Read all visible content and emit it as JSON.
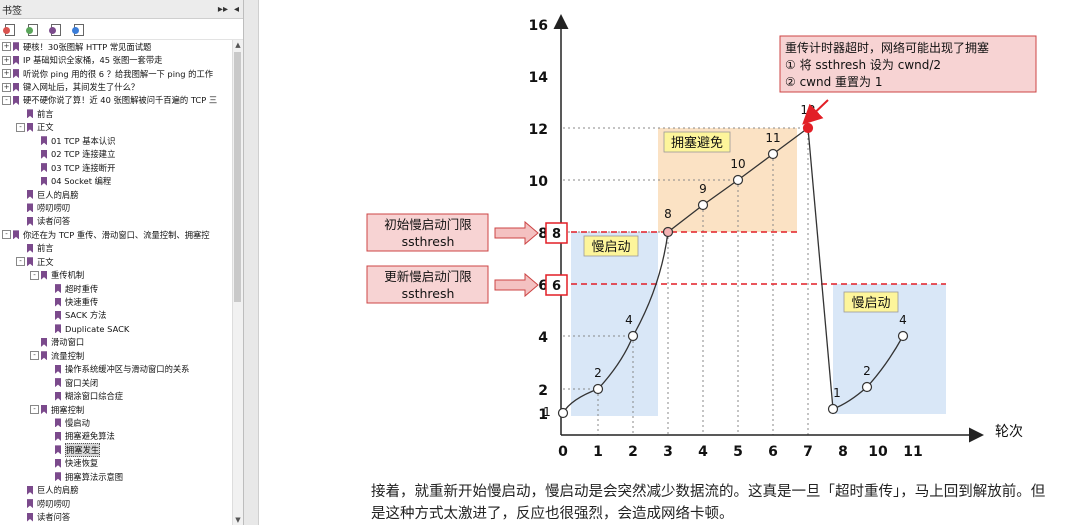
{
  "sidebar": {
    "title": "书签",
    "header_controls": [
      "▸▸",
      "◂"
    ],
    "toolbar_icons": [
      "bookmark-options-icon",
      "expand-bookmark-icon",
      "add-bookmark-icon",
      "bookmark-settings-icon"
    ],
    "items": [
      {
        "label": "硬核！30张图解 HTTP 常见面试题",
        "depth": 0,
        "exp": "+"
      },
      {
        "label": "IP 基础知识全家桶，45 张图一套带走",
        "depth": 0,
        "exp": "+"
      },
      {
        "label": "听说你 ping 用的很 6 ？给我图解一下 ping 的工作",
        "depth": 0,
        "exp": "+"
      },
      {
        "label": "键入网址后，其间发生了什么？",
        "depth": 0,
        "exp": "+"
      },
      {
        "label": "硬不硬你说了算！近 40 张图解被问千百遍的 TCP 三",
        "depth": 0,
        "exp": "-"
      },
      {
        "label": "前言",
        "depth": 1,
        "exp": ""
      },
      {
        "label": "正文",
        "depth": 1,
        "exp": "-"
      },
      {
        "label": "01 TCP 基本认识",
        "depth": 2,
        "exp": ""
      },
      {
        "label": "02 TCP 连接建立",
        "depth": 2,
        "exp": ""
      },
      {
        "label": "03 TCP 连接断开",
        "depth": 2,
        "exp": ""
      },
      {
        "label": "04 Socket 编程",
        "depth": 2,
        "exp": ""
      },
      {
        "label": "巨人的肩膀",
        "depth": 1,
        "exp": ""
      },
      {
        "label": "唠叨唠叨",
        "depth": 1,
        "exp": ""
      },
      {
        "label": "读者问答",
        "depth": 1,
        "exp": ""
      },
      {
        "label": "你还在为 TCP 重传、滑动窗口、流量控制、拥塞控",
        "depth": 0,
        "exp": "-"
      },
      {
        "label": "前言",
        "depth": 1,
        "exp": ""
      },
      {
        "label": "正文",
        "depth": 1,
        "exp": "-"
      },
      {
        "label": "重传机制",
        "depth": 2,
        "exp": "-"
      },
      {
        "label": "超时重传",
        "depth": 3,
        "exp": ""
      },
      {
        "label": "快速重传",
        "depth": 3,
        "exp": ""
      },
      {
        "label": "SACK 方法",
        "depth": 3,
        "exp": ""
      },
      {
        "label": "Duplicate SACK",
        "depth": 3,
        "exp": ""
      },
      {
        "label": "滑动窗口",
        "depth": 2,
        "exp": ""
      },
      {
        "label": "流量控制",
        "depth": 2,
        "exp": "-"
      },
      {
        "label": "操作系统缓冲区与滑动窗口的关系",
        "depth": 3,
        "exp": ""
      },
      {
        "label": "窗口关闭",
        "depth": 3,
        "exp": ""
      },
      {
        "label": "糊涂窗口综合症",
        "depth": 3,
        "exp": ""
      },
      {
        "label": "拥塞控制",
        "depth": 2,
        "exp": "-"
      },
      {
        "label": "慢启动",
        "depth": 3,
        "exp": ""
      },
      {
        "label": "拥塞避免算法",
        "depth": 3,
        "exp": ""
      },
      {
        "label": "拥塞发生",
        "depth": 3,
        "exp": "",
        "selected": true
      },
      {
        "label": "快速恢复",
        "depth": 3,
        "exp": ""
      },
      {
        "label": "拥塞算法示意图",
        "depth": 3,
        "exp": ""
      },
      {
        "label": "巨人的肩膀",
        "depth": 1,
        "exp": ""
      },
      {
        "label": "唠叨唠叨",
        "depth": 1,
        "exp": ""
      },
      {
        "label": "读者问答",
        "depth": 1,
        "exp": ""
      }
    ]
  },
  "figure": {
    "y_ticks": [
      "1",
      "2",
      "4",
      "6",
      "8",
      "10",
      "12",
      "14",
      "16"
    ],
    "x_ticks": [
      "0",
      "1",
      "2",
      "3",
      "4",
      "5",
      "6",
      "7",
      "8",
      "10",
      "11"
    ],
    "x_axis_label": "轮次",
    "point_labels": [
      "1",
      "2",
      "4",
      "8",
      "9",
      "10",
      "11",
      "12",
      "1",
      "2",
      "4"
    ],
    "box_init": {
      "line1": "初始慢启动门限",
      "line2": "ssthresh"
    },
    "box_update": {
      "line1": "更新慢启动门限",
      "line2": "ssthresh"
    },
    "marker_8": "8",
    "marker_6": "6",
    "label_slow_start_1": "慢启动",
    "label_cong_avoid": "拥塞避免",
    "label_slow_start_2": "慢启动",
    "timeout_note": {
      "line1": "重传计时器超时，网络可能出现了拥塞",
      "line2": "① 将 ssthresh 设为 cwnd/2",
      "line3": "② cwnd 重置为 1"
    },
    "colors": {
      "blue_region": "#d9e7f7",
      "orange_region": "#fbe2c4",
      "red_dash": "#e21f26",
      "label_yellow": "#fdf59b",
      "arrow_pink": "#f4c1c1"
    }
  },
  "caption": "接着，就重新开始慢启动，慢启动是会突然减少数据流的。这真是一旦「超时重传」，马上回到解放前。但是这种方式太激进了，反应也很强烈，会造成网络卡顿。",
  "chart_data": {
    "type": "line",
    "xlabel": "轮次",
    "ylabel": "",
    "x_tick_labels": [
      "0",
      "1",
      "2",
      "3",
      "4",
      "5",
      "6",
      "7",
      "8",
      "10",
      "11"
    ],
    "y_tick_labels": [
      "1",
      "2",
      "4",
      "6",
      "8",
      "10",
      "12",
      "14",
      "16"
    ],
    "ylim": [
      0,
      16
    ],
    "series": [
      {
        "values": [
          [
            0,
            1
          ],
          [
            1,
            2
          ],
          [
            2,
            4
          ],
          [
            3,
            8
          ],
          [
            4,
            9
          ],
          [
            5,
            10
          ],
          [
            6,
            11
          ],
          [
            7,
            12
          ]
        ]
      },
      {
        "values": [
          [
            8,
            1
          ],
          [
            9,
            2
          ],
          [
            10,
            4
          ]
        ]
      }
    ],
    "thresholds": [
      8,
      6
    ]
  }
}
